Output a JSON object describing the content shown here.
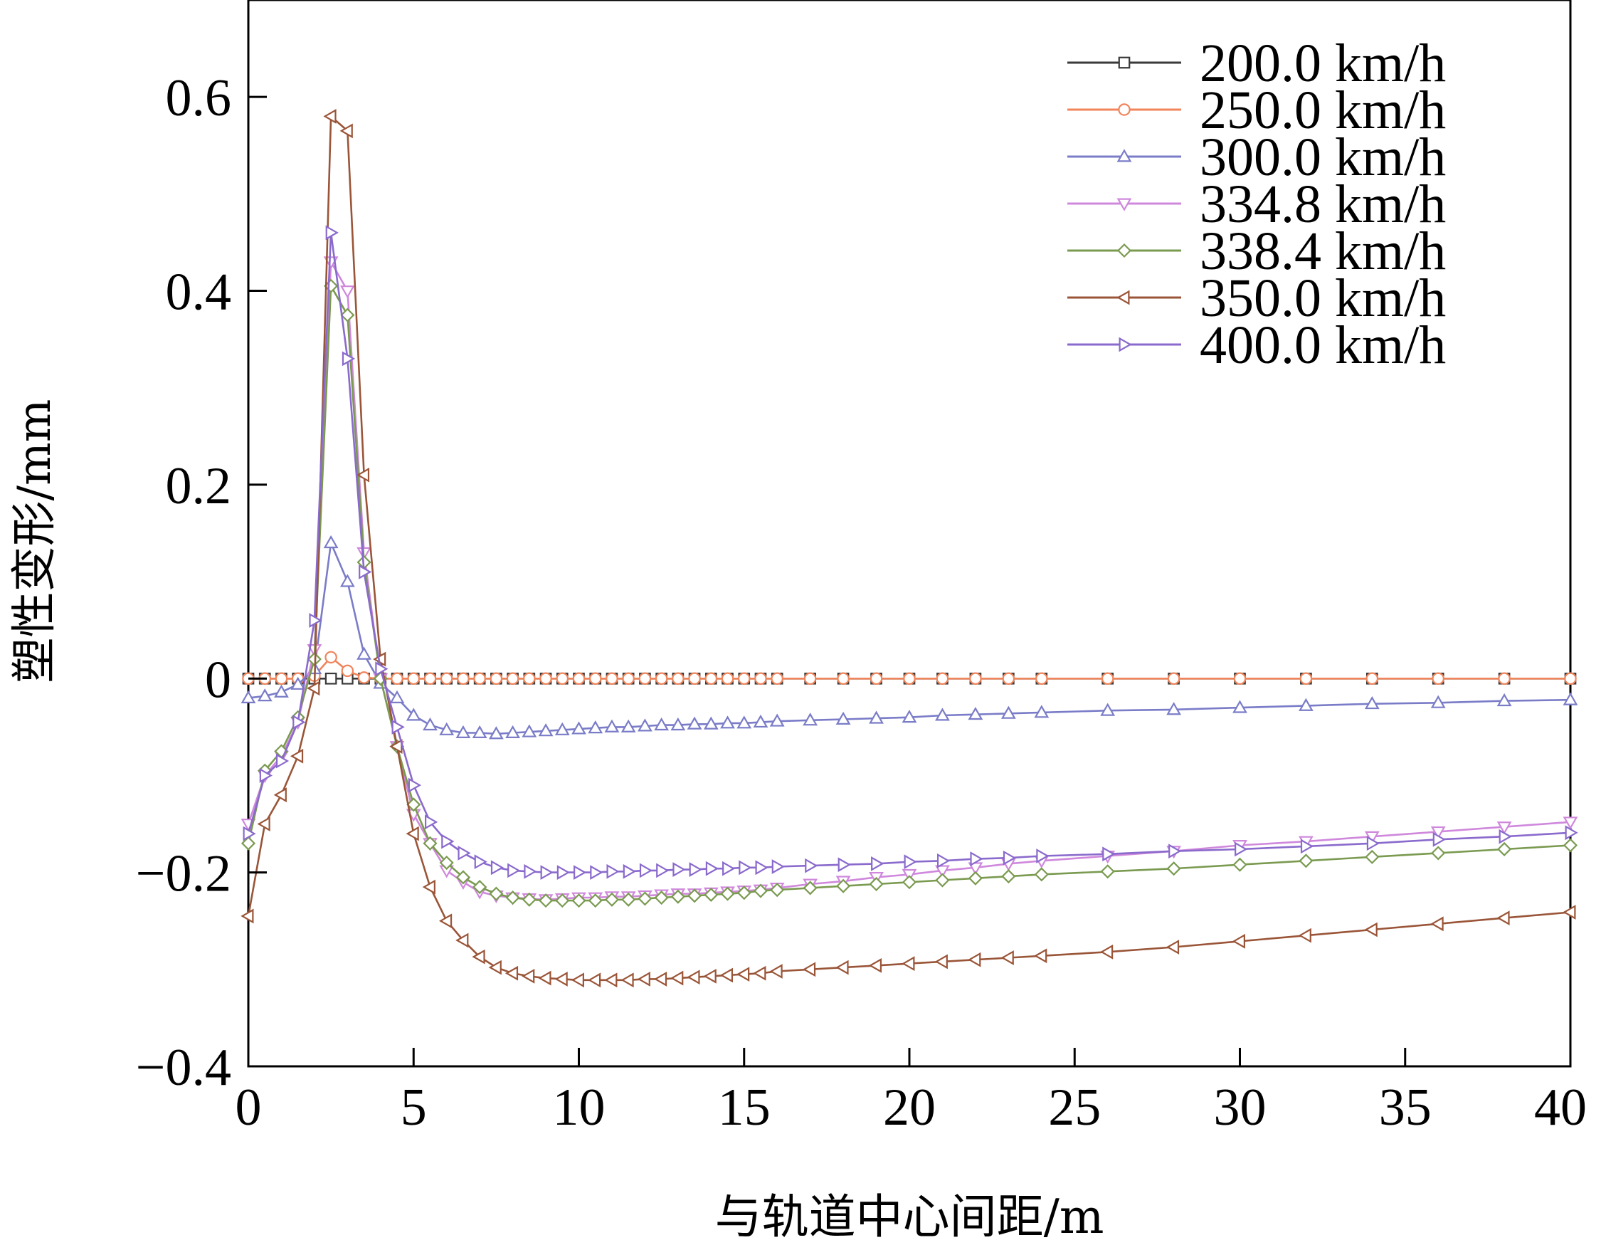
{
  "chart_data": {
    "type": "line",
    "xlabel": "与轨道中心间距/m",
    "ylabel": "塑性变形/mm",
    "xlim": [
      0,
      40
    ],
    "ylim": [
      -0.4,
      0.7
    ],
    "xticks": [
      0,
      5,
      10,
      15,
      20,
      25,
      30,
      35,
      40
    ],
    "xtick_labels": [
      "0",
      "5",
      "10",
      "15",
      "20",
      "25",
      "30",
      "35",
      "40"
    ],
    "yticks": [
      -0.4,
      -0.2,
      0,
      0.2,
      0.4,
      0.6
    ],
    "ytick_labels": [
      "−0.4",
      "−0.2",
      "0",
      "0.2",
      "0.4",
      "0.6"
    ],
    "grid": false,
    "legend_position": "top-right",
    "series": [
      {
        "name": "200.0 km/h",
        "color": "#3a3a3a",
        "marker": "square",
        "x": [
          0,
          0.5,
          1,
          1.5,
          2,
          2.5,
          3,
          3.5,
          4,
          4.5,
          5,
          5.5,
          6,
          6.5,
          7,
          7.5,
          8,
          8.5,
          9,
          9.5,
          10,
          10.5,
          11,
          11.5,
          12,
          12.5,
          13,
          13.5,
          14,
          14.5,
          15,
          15.5,
          16,
          17,
          18,
          19,
          20,
          21,
          22,
          23,
          24,
          26,
          28,
          30,
          32,
          34,
          36,
          38,
          40
        ],
        "y": [
          0,
          0,
          0,
          0,
          0,
          0,
          0,
          0,
          0,
          0,
          0,
          0,
          0,
          0,
          0,
          0,
          0,
          0,
          0,
          0,
          0,
          0,
          0,
          0,
          0,
          0,
          0,
          0,
          0,
          0,
          0,
          0,
          0,
          0,
          0,
          0,
          0,
          0,
          0,
          0,
          0,
          0,
          0,
          0,
          0,
          0,
          0,
          0,
          0
        ]
      },
      {
        "name": "250.0 km/h",
        "color": "#f0845a",
        "marker": "circle",
        "x": [
          0,
          0.5,
          1,
          1.5,
          2,
          2.5,
          3,
          3.5,
          4,
          4.5,
          5,
          5.5,
          6,
          6.5,
          7,
          7.5,
          8,
          8.5,
          9,
          9.5,
          10,
          10.5,
          11,
          11.5,
          12,
          12.5,
          13,
          13.5,
          14,
          14.5,
          15,
          15.5,
          16,
          17,
          18,
          19,
          20,
          21,
          22,
          23,
          24,
          26,
          28,
          30,
          32,
          34,
          36,
          38,
          40
        ],
        "y": [
          0,
          0,
          0,
          0,
          0.003,
          0.022,
          0.008,
          0.001,
          0,
          0,
          0,
          0,
          0,
          0,
          0,
          0,
          0,
          0,
          0,
          0,
          0,
          0,
          0,
          0,
          0,
          0,
          0,
          0,
          0,
          0,
          0,
          0,
          0,
          0,
          0,
          0,
          0,
          0,
          0,
          0,
          0,
          0,
          0,
          0,
          0,
          0,
          0,
          0,
          0
        ]
      },
      {
        "name": "300.0 km/h",
        "color": "#7a7cc8",
        "marker": "triangle-up",
        "x": [
          0,
          0.5,
          1,
          1.5,
          2,
          2.5,
          3,
          3.5,
          4,
          4.5,
          5,
          5.5,
          6,
          6.5,
          7,
          7.5,
          8,
          8.5,
          9,
          9.5,
          10,
          10.5,
          11,
          11.5,
          12,
          12.5,
          13,
          13.5,
          14,
          14.5,
          15,
          15.5,
          16,
          17,
          18,
          19,
          20,
          21,
          22,
          23,
          24,
          26,
          28,
          30,
          32,
          34,
          36,
          38,
          40
        ],
        "y": [
          -0.02,
          -0.018,
          -0.014,
          -0.006,
          0.01,
          0.14,
          0.1,
          0.025,
          -0.005,
          -0.02,
          -0.038,
          -0.048,
          -0.053,
          -0.056,
          -0.056,
          -0.057,
          -0.056,
          -0.055,
          -0.054,
          -0.053,
          -0.052,
          -0.051,
          -0.05,
          -0.05,
          -0.049,
          -0.048,
          -0.048,
          -0.047,
          -0.047,
          -0.046,
          -0.046,
          -0.045,
          -0.044,
          -0.043,
          -0.042,
          -0.041,
          -0.04,
          -0.038,
          -0.037,
          -0.036,
          -0.035,
          -0.033,
          -0.032,
          -0.03,
          -0.028,
          -0.026,
          -0.025,
          -0.023,
          -0.022
        ]
      },
      {
        "name": "334.8 km/h",
        "color": "#cf88dc",
        "marker": "triangle-down",
        "x": [
          0,
          0.5,
          1,
          1.5,
          2,
          2.5,
          3,
          3.5,
          4,
          4.5,
          5,
          5.5,
          6,
          6.5,
          7,
          7.5,
          8,
          8.5,
          9,
          9.5,
          10,
          10.5,
          11,
          11.5,
          12,
          12.5,
          13,
          13.5,
          14,
          14.5,
          15,
          15.5,
          16,
          17,
          18,
          19,
          20,
          21,
          22,
          23,
          24,
          26,
          28,
          30,
          32,
          34,
          36,
          38,
          40
        ],
        "y": [
          -0.15,
          -0.1,
          -0.08,
          -0.045,
          0.03,
          0.43,
          0.4,
          0.13,
          0,
          -0.07,
          -0.14,
          -0.17,
          -0.198,
          -0.21,
          -0.22,
          -0.224,
          -0.226,
          -0.227,
          -0.228,
          -0.227,
          -0.226,
          -0.226,
          -0.225,
          -0.225,
          -0.224,
          -0.223,
          -0.222,
          -0.222,
          -0.221,
          -0.22,
          -0.219,
          -0.218,
          -0.216,
          -0.212,
          -0.209,
          -0.205,
          -0.202,
          -0.198,
          -0.195,
          -0.191,
          -0.188,
          -0.183,
          -0.178,
          -0.172,
          -0.168,
          -0.163,
          -0.158,
          -0.153,
          -0.148
        ]
      },
      {
        "name": "338.4 km/h",
        "color": "#7a9a50",
        "marker": "diamond",
        "x": [
          0,
          0.5,
          1,
          1.5,
          2,
          2.5,
          3,
          3.5,
          4,
          4.5,
          5,
          5.5,
          6,
          6.5,
          7,
          7.5,
          8,
          8.5,
          9,
          9.5,
          10,
          10.5,
          11,
          11.5,
          12,
          12.5,
          13,
          13.5,
          14,
          14.5,
          15,
          15.5,
          16,
          17,
          18,
          19,
          20,
          21,
          22,
          23,
          24,
          26,
          28,
          30,
          32,
          34,
          36,
          38,
          40
        ],
        "y": [
          -0.17,
          -0.095,
          -0.075,
          -0.04,
          0.02,
          0.405,
          0.375,
          0.12,
          0,
          -0.07,
          -0.13,
          -0.17,
          -0.19,
          -0.205,
          -0.215,
          -0.222,
          -0.226,
          -0.228,
          -0.229,
          -0.229,
          -0.229,
          -0.229,
          -0.228,
          -0.228,
          -0.227,
          -0.226,
          -0.225,
          -0.224,
          -0.223,
          -0.222,
          -0.221,
          -0.219,
          -0.218,
          -0.216,
          -0.214,
          -0.212,
          -0.21,
          -0.208,
          -0.206,
          -0.204,
          -0.202,
          -0.199,
          -0.196,
          -0.192,
          -0.188,
          -0.184,
          -0.18,
          -0.176,
          -0.172
        ]
      },
      {
        "name": "350.0 km/h",
        "color": "#9a5538",
        "marker": "triangle-left",
        "x": [
          0,
          0.5,
          1,
          1.5,
          2,
          2.5,
          3,
          3.5,
          4,
          4.5,
          5,
          5.5,
          6,
          6.5,
          7,
          7.5,
          8,
          8.5,
          9,
          9.5,
          10,
          10.5,
          11,
          11.5,
          12,
          12.5,
          13,
          13.5,
          14,
          14.5,
          15,
          15.5,
          16,
          17,
          18,
          19,
          20,
          21,
          22,
          23,
          24,
          26,
          28,
          30,
          32,
          34,
          36,
          38,
          40
        ],
        "y": [
          -0.245,
          -0.15,
          -0.12,
          -0.08,
          -0.01,
          0.58,
          0.565,
          0.21,
          0.02,
          -0.07,
          -0.16,
          -0.215,
          -0.25,
          -0.27,
          -0.287,
          -0.298,
          -0.304,
          -0.307,
          -0.309,
          -0.31,
          -0.311,
          -0.311,
          -0.311,
          -0.311,
          -0.31,
          -0.31,
          -0.309,
          -0.308,
          -0.307,
          -0.306,
          -0.305,
          -0.304,
          -0.302,
          -0.3,
          -0.298,
          -0.296,
          -0.294,
          -0.292,
          -0.29,
          -0.288,
          -0.286,
          -0.282,
          -0.277,
          -0.271,
          -0.265,
          -0.259,
          -0.253,
          -0.247,
          -0.241
        ]
      },
      {
        "name": "400.0 km/h",
        "color": "#8a6acc",
        "marker": "triangle-right",
        "x": [
          0,
          0.5,
          1,
          1.5,
          2,
          2.5,
          3,
          3.5,
          4,
          4.5,
          5,
          5.5,
          6,
          6.5,
          7,
          7.5,
          8,
          8.5,
          9,
          9.5,
          10,
          10.5,
          11,
          11.5,
          12,
          12.5,
          13,
          13.5,
          14,
          14.5,
          15,
          15.5,
          16,
          17,
          18,
          19,
          20,
          21,
          22,
          23,
          24,
          26,
          28,
          30,
          32,
          34,
          36,
          38,
          40
        ],
        "y": [
          -0.16,
          -0.1,
          -0.085,
          -0.045,
          0.06,
          0.46,
          0.33,
          0.11,
          0.01,
          -0.05,
          -0.11,
          -0.148,
          -0.168,
          -0.18,
          -0.189,
          -0.195,
          -0.198,
          -0.199,
          -0.2,
          -0.2,
          -0.2,
          -0.2,
          -0.199,
          -0.199,
          -0.198,
          -0.198,
          -0.197,
          -0.197,
          -0.196,
          -0.196,
          -0.195,
          -0.195,
          -0.194,
          -0.193,
          -0.192,
          -0.191,
          -0.189,
          -0.188,
          -0.186,
          -0.185,
          -0.183,
          -0.181,
          -0.178,
          -0.176,
          -0.173,
          -0.17,
          -0.166,
          -0.163,
          -0.159
        ]
      }
    ]
  }
}
